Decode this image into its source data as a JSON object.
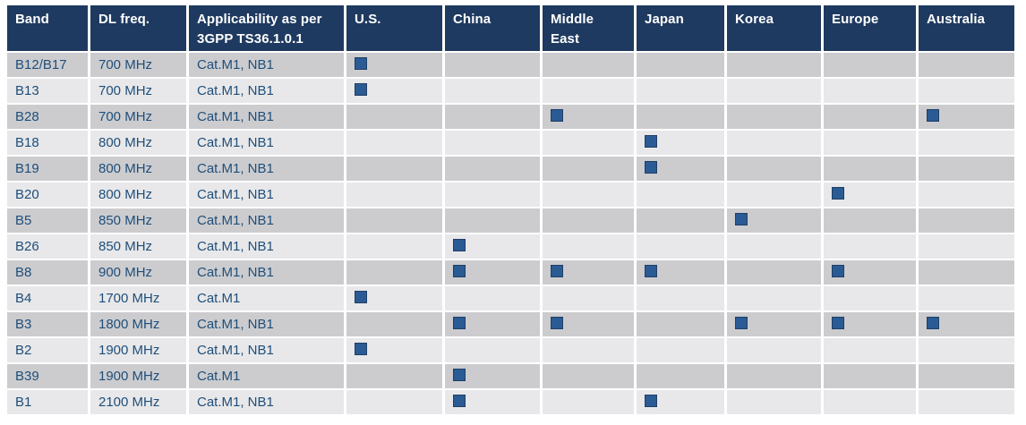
{
  "table": {
    "columns": [
      {
        "key": "band",
        "label": "Band",
        "type": "text"
      },
      {
        "key": "freq",
        "label": "DL freq.",
        "type": "text"
      },
      {
        "key": "applicability",
        "label": "Applicability as per 3GPP TS36.1.0.1",
        "type": "text"
      },
      {
        "key": "us",
        "label": "U.S.",
        "type": "region"
      },
      {
        "key": "china",
        "label": "China",
        "type": "region"
      },
      {
        "key": "middle_east",
        "label": "Middle East",
        "type": "region"
      },
      {
        "key": "japan",
        "label": "Japan",
        "type": "region"
      },
      {
        "key": "korea",
        "label": "Korea",
        "type": "region"
      },
      {
        "key": "europe",
        "label": "Europe",
        "type": "region"
      },
      {
        "key": "australia",
        "label": "Australia",
        "type": "region"
      }
    ],
    "rows": [
      {
        "band": "B12/B17",
        "freq": "700 MHz",
        "applicability": "Cat.M1, NB1",
        "applicable_in": [
          "us"
        ]
      },
      {
        "band": "B13",
        "freq": "700 MHz",
        "applicability": "Cat.M1, NB1",
        "applicable_in": [
          "us"
        ]
      },
      {
        "band": "B28",
        "freq": "700 MHz",
        "applicability": "Cat.M1, NB1",
        "applicable_in": [
          "middle_east",
          "australia"
        ]
      },
      {
        "band": "B18",
        "freq": "800 MHz",
        "applicability": "Cat.M1, NB1",
        "applicable_in": [
          "japan"
        ]
      },
      {
        "band": "B19",
        "freq": "800 MHz",
        "applicability": "Cat.M1, NB1",
        "applicable_in": [
          "japan"
        ]
      },
      {
        "band": "B20",
        "freq": "800 MHz",
        "applicability": "Cat.M1, NB1",
        "applicable_in": [
          "europe"
        ]
      },
      {
        "band": "B5",
        "freq": "850 MHz",
        "applicability": "Cat.M1, NB1",
        "applicable_in": [
          "korea"
        ]
      },
      {
        "band": "B26",
        "freq": "850 MHz",
        "applicability": "Cat.M1, NB1",
        "applicable_in": [
          "china"
        ]
      },
      {
        "band": "B8",
        "freq": "900 MHz",
        "applicability": "Cat.M1, NB1",
        "applicable_in": [
          "china",
          "middle_east",
          "japan",
          "europe"
        ]
      },
      {
        "band": "B4",
        "freq": "1700 MHz",
        "applicability": "Cat.M1",
        "applicable_in": [
          "us"
        ]
      },
      {
        "band": "B3",
        "freq": "1800 MHz",
        "applicability": "Cat.M1, NB1",
        "applicable_in": [
          "china",
          "middle_east",
          "korea",
          "europe",
          "australia"
        ]
      },
      {
        "band": "B2",
        "freq": "1900 MHz",
        "applicability": "Cat.M1, NB1",
        "applicable_in": [
          "us"
        ]
      },
      {
        "band": "B39",
        "freq": "1900 MHz",
        "applicability": "Cat.M1",
        "applicable_in": [
          "china"
        ]
      },
      {
        "band": "B1",
        "freq": "2100 MHz",
        "applicability": "Cat.M1, NB1",
        "applicable_in": [
          "china",
          "japan"
        ]
      }
    ]
  },
  "marker": {
    "shape": "filled-square",
    "meaning": "band applicable in region",
    "fill": "#2a5b94",
    "border": "#203e66"
  },
  "colors": {
    "header_bg": "#1f3a60",
    "header_text": "#ffffff",
    "row_dark": "#cccccf",
    "row_light": "#e8e8ea",
    "cell_text": "#1f4e79",
    "page_bg": "#ffffff"
  }
}
